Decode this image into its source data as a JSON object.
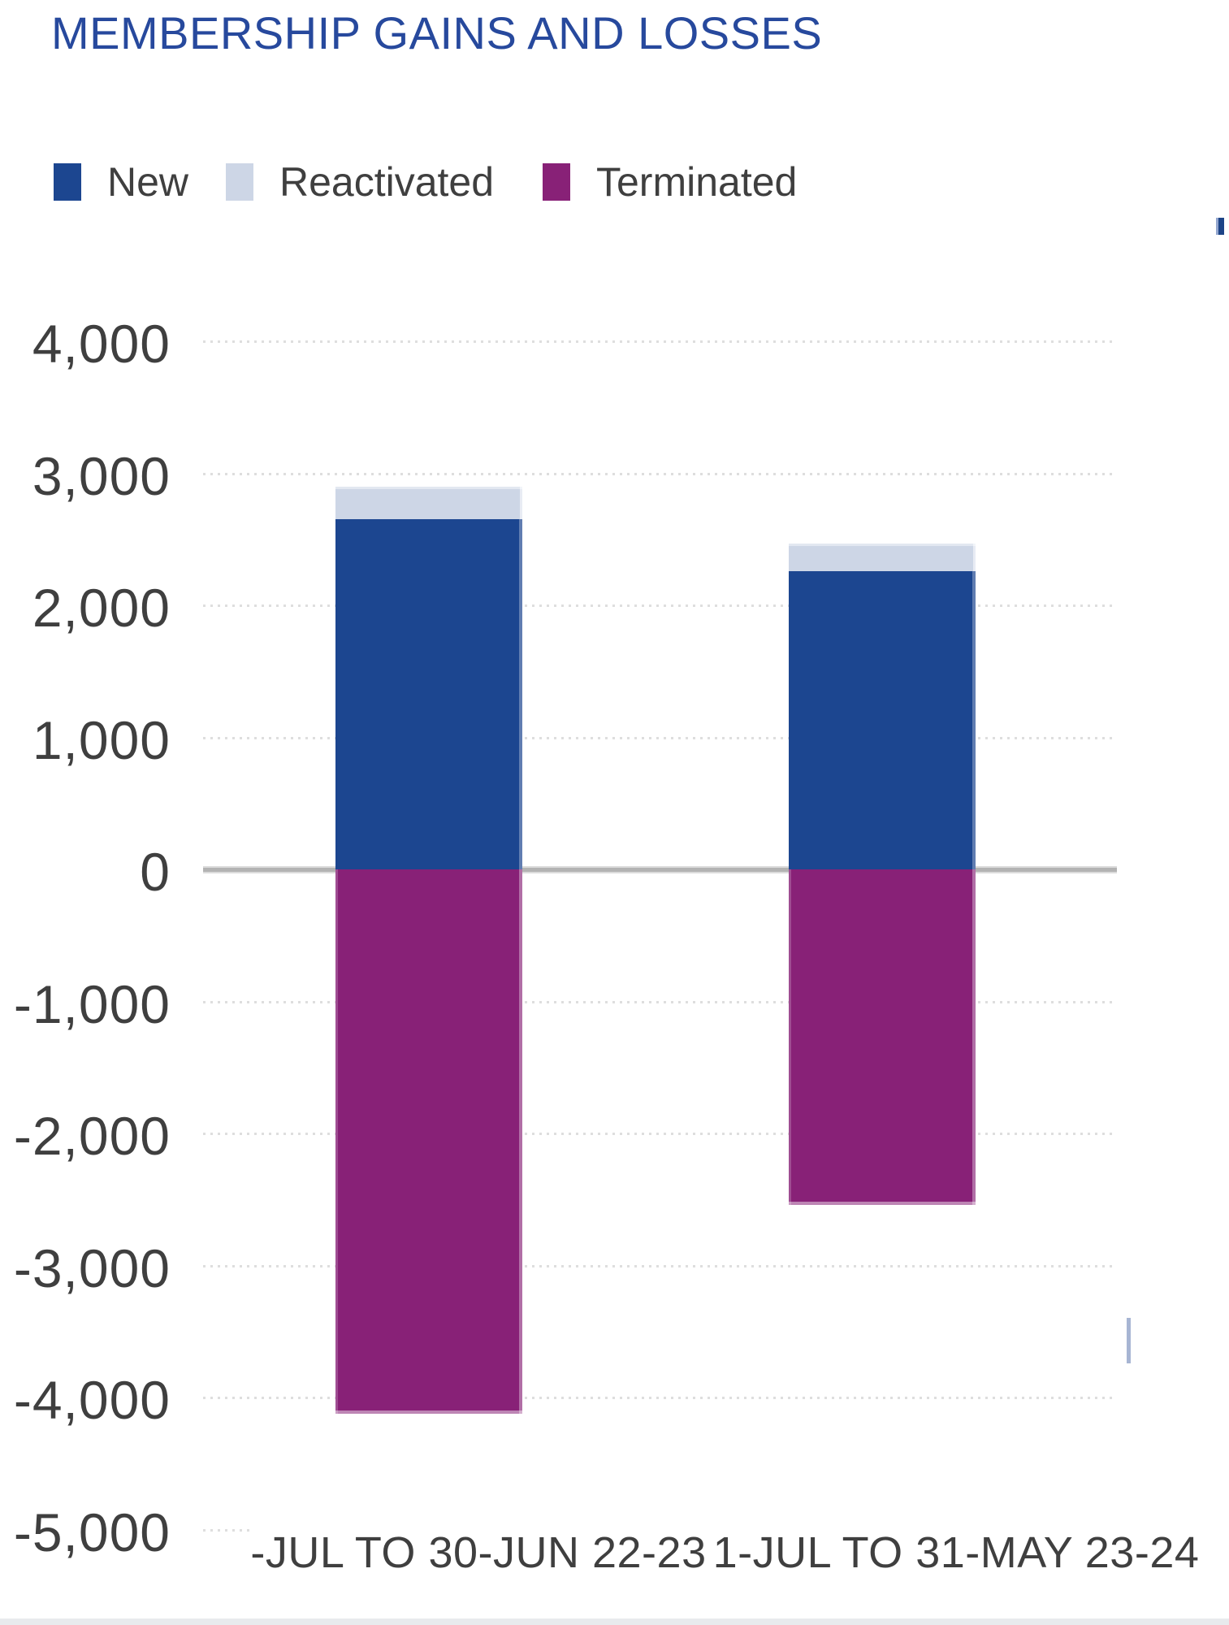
{
  "title": "MEMBERSHIP GAINS AND LOSSES",
  "legend": {
    "items": [
      {
        "label": "New",
        "color": "#1c4690"
      },
      {
        "label": "Reactivated",
        "color": "#cdd6e6"
      },
      {
        "label": "Terminated",
        "color": "#882177"
      }
    ]
  },
  "chart_data": {
    "type": "bar",
    "stacked": true,
    "title": "MEMBERSHIP GAINS AND LOSSES",
    "categories": [
      "-JUL TO 30-JUN 22-23",
      "1-JUL TO 31-MAY 23-24"
    ],
    "series": [
      {
        "name": "New",
        "color": "#1c4690",
        "values": [
          2650,
          2260
        ]
      },
      {
        "name": "Reactivated",
        "color": "#cdd6e6",
        "values": [
          250,
          210
        ]
      },
      {
        "name": "Terminated",
        "color": "#882177",
        "values": [
          -4120,
          -2540
        ]
      }
    ],
    "xlabel": "",
    "ylabel": "",
    "ylim": [
      -5000,
      4000
    ],
    "y_tick_step": 1000,
    "ytick_values": [
      4000,
      3000,
      2000,
      1000,
      0,
      -1000,
      -2000,
      -3000,
      -4000,
      -5000
    ],
    "ytick_labels": [
      "4,000",
      "3,000",
      "2,000",
      "1,000",
      "0",
      "-1,000",
      "-2,000",
      "-3,000",
      "-4,000",
      "-5,000"
    ],
    "grid": "horizontal-dotted",
    "zero_line": true,
    "legend_position": "top-left"
  },
  "colors": {
    "background": "#ffffff",
    "title": "#27499d",
    "axis_text": "#3f3f3f",
    "grid_dot": "#dedede",
    "zero_line": "#b3b3b3",
    "edge_strip_bottom": "#e8eaed",
    "artifact_blue_mark": "#1d4487",
    "artifact_light_line": "#a7b5d3"
  }
}
